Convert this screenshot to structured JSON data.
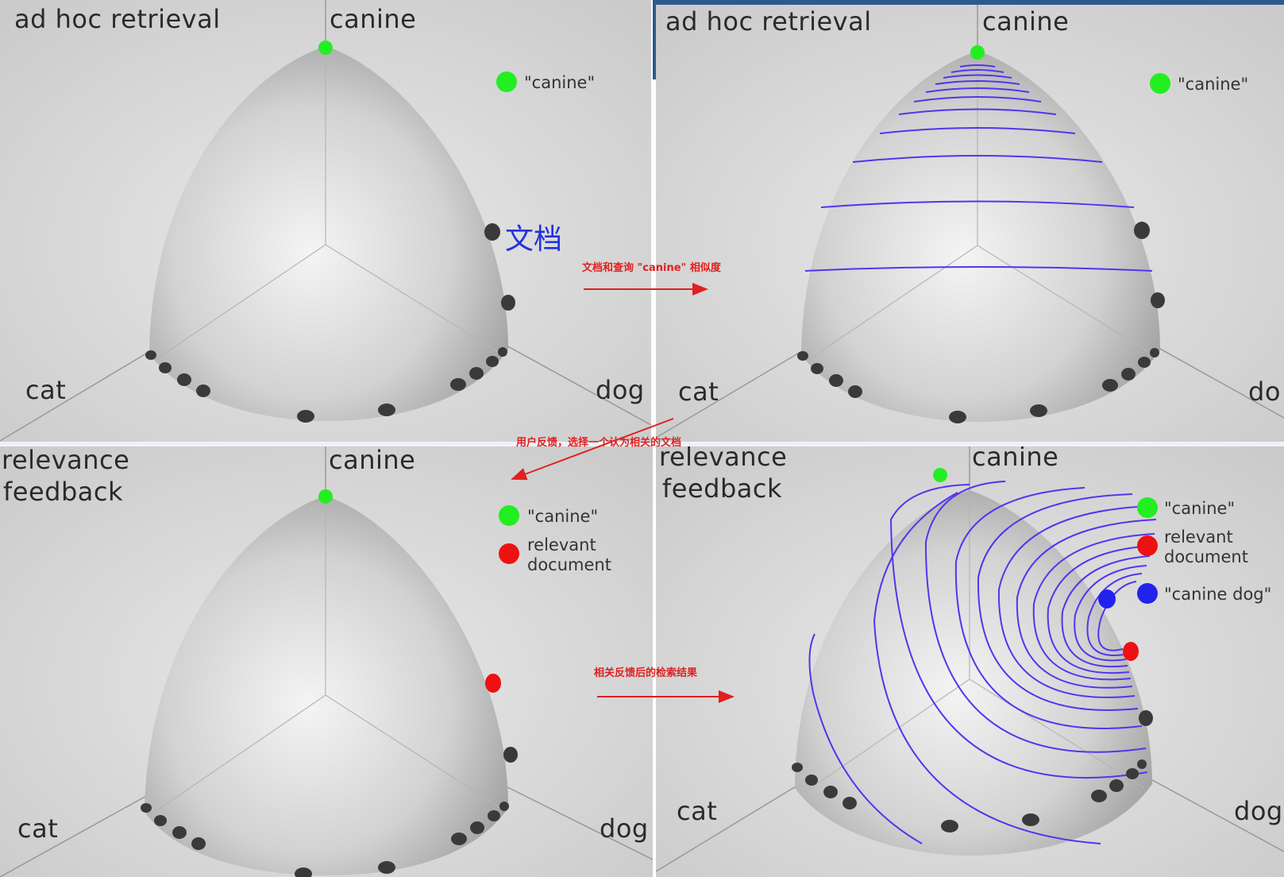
{
  "panels": {
    "top_left": {
      "title": "ad hoc retrieval",
      "axis_top": "canine",
      "axis_left": "cat",
      "axis_right": "dog",
      "legend": [
        {
          "label": "\"canine\"",
          "color": "#22ee22"
        }
      ],
      "doc_label": "文档"
    },
    "top_right": {
      "title": "ad hoc retrieval",
      "axis_top": "canine",
      "axis_left": "cat",
      "axis_right": "do",
      "legend": [
        {
          "label": "\"canine\"",
          "color": "#22ee22"
        }
      ]
    },
    "bottom_left": {
      "title_line1": "relevance",
      "title_line2": "feedback",
      "axis_top": "canine",
      "axis_left": "cat",
      "axis_right": "dog",
      "legend": [
        {
          "label": "\"canine\"",
          "color": "#22ee22"
        },
        {
          "label_line1": "relevant",
          "label_line2": "document",
          "color": "#ee1111"
        }
      ]
    },
    "bottom_right": {
      "title_line1": "relevance",
      "title_line2": "feedback",
      "axis_top": "canine",
      "axis_left": "cat",
      "axis_right": "dog",
      "legend": [
        {
          "label": "\"canine\"",
          "color": "#22ee22"
        },
        {
          "label_line1": "relevant",
          "label_line2": "document",
          "color": "#ee1111"
        },
        {
          "label": "\"canine dog\"",
          "color": "#2222ee"
        }
      ]
    }
  },
  "annotations": {
    "similarity": "文档和查询 \"canine\" 相似度",
    "user_feedback": "用户反馈，选择一个认为相关的文档",
    "feedback_result": "相关反馈后的检索结果"
  },
  "colors": {
    "annotation": "#e02020",
    "contour": "#5533ee",
    "sphere": "#cfcfcf"
  }
}
